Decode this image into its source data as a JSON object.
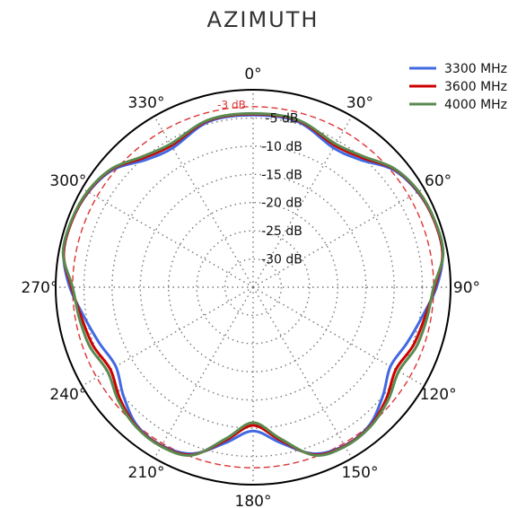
{
  "chart_data": {
    "type": "polar-line",
    "title": "AZIMUTH",
    "angle_labels": [
      {
        "angle": 0,
        "text": "0°"
      },
      {
        "angle": 30,
        "text": "30°"
      },
      {
        "angle": 60,
        "text": "60°"
      },
      {
        "angle": 90,
        "text": "90°"
      },
      {
        "angle": 120,
        "text": "120°"
      },
      {
        "angle": 150,
        "text": "150°"
      },
      {
        "angle": 180,
        "text": "180°"
      },
      {
        "angle": 210,
        "text": "210°"
      },
      {
        "angle": 240,
        "text": "240°"
      },
      {
        "angle": 270,
        "text": "270°"
      },
      {
        "angle": 300,
        "text": "300°"
      },
      {
        "angle": 330,
        "text": "330°"
      }
    ],
    "radial_axis": {
      "min_db": -35,
      "max_db": 0
    },
    "rings": [
      {
        "db": -5,
        "label": "-5 dB"
      },
      {
        "db": -10,
        "label": "-10 dB"
      },
      {
        "db": -15,
        "label": "-15 dB"
      },
      {
        "db": -20,
        "label": "-20 dB"
      },
      {
        "db": -25,
        "label": "-25 dB"
      },
      {
        "db": -30,
        "label": "-30 dB"
      }
    ],
    "reference_ring": {
      "db": -3,
      "label": "-3 dB",
      "color": "#dd3333"
    },
    "grid": true,
    "legend_position": "top-right",
    "series": [
      {
        "name": "3300 MHz",
        "color": "#4169e1",
        "points": [
          [
            0,
            -4.5
          ],
          [
            15,
            -4.6
          ],
          [
            30,
            -6.5
          ],
          [
            40,
            -5.5
          ],
          [
            50,
            -2.6
          ],
          [
            60,
            -1.3
          ],
          [
            70,
            -0.8
          ],
          [
            80,
            -0.9
          ],
          [
            90,
            -2.5
          ],
          [
            100,
            -4.6
          ],
          [
            110,
            -6.0
          ],
          [
            120,
            -6.9
          ],
          [
            130,
            -5.0
          ],
          [
            140,
            -3.0
          ],
          [
            150,
            -2.6
          ],
          [
            160,
            -3.6
          ],
          [
            170,
            -7.0
          ],
          [
            180,
            -9.5
          ],
          [
            190,
            -7.0
          ],
          [
            200,
            -3.6
          ],
          [
            210,
            -2.6
          ],
          [
            220,
            -3.0
          ],
          [
            230,
            -5.0
          ],
          [
            240,
            -6.9
          ],
          [
            250,
            -6.0
          ],
          [
            260,
            -4.6
          ],
          [
            270,
            -2.5
          ],
          [
            280,
            -0.9
          ],
          [
            290,
            -0.8
          ],
          [
            300,
            -1.3
          ],
          [
            310,
            -2.6
          ],
          [
            320,
            -5.5
          ],
          [
            330,
            -6.5
          ],
          [
            345,
            -4.6
          ]
        ]
      },
      {
        "name": "3600 MHz",
        "color": "#cc0000",
        "points": [
          [
            0,
            -4.3
          ],
          [
            15,
            -4.4
          ],
          [
            30,
            -6.0
          ],
          [
            40,
            -5.0
          ],
          [
            50,
            -2.4
          ],
          [
            60,
            -1.2
          ],
          [
            70,
            -0.8
          ],
          [
            80,
            -0.9
          ],
          [
            90,
            -2.8
          ],
          [
            100,
            -4.1
          ],
          [
            110,
            -4.8
          ],
          [
            120,
            -5.8
          ],
          [
            130,
            -4.2
          ],
          [
            140,
            -2.8
          ],
          [
            150,
            -2.5
          ],
          [
            160,
            -3.4
          ],
          [
            170,
            -7.5
          ],
          [
            180,
            -10.5
          ],
          [
            190,
            -7.5
          ],
          [
            200,
            -3.4
          ],
          [
            210,
            -2.5
          ],
          [
            220,
            -2.8
          ],
          [
            230,
            -4.2
          ],
          [
            240,
            -5.8
          ],
          [
            250,
            -4.8
          ],
          [
            260,
            -4.1
          ],
          [
            270,
            -2.8
          ],
          [
            280,
            -0.9
          ],
          [
            290,
            -0.8
          ],
          [
            300,
            -1.2
          ],
          [
            310,
            -2.4
          ],
          [
            320,
            -5.0
          ],
          [
            330,
            -6.0
          ],
          [
            345,
            -4.4
          ]
        ]
      },
      {
        "name": "4000 MHz",
        "color": "#5a8a50",
        "points": [
          [
            0,
            -4.2
          ],
          [
            15,
            -4.3
          ],
          [
            30,
            -5.7
          ],
          [
            40,
            -4.7
          ],
          [
            50,
            -2.3
          ],
          [
            60,
            -1.1
          ],
          [
            70,
            -0.7
          ],
          [
            80,
            -0.8
          ],
          [
            90,
            -3.0
          ],
          [
            100,
            -3.7
          ],
          [
            110,
            -4.2
          ],
          [
            120,
            -5.2
          ],
          [
            130,
            -3.8
          ],
          [
            140,
            -2.7
          ],
          [
            150,
            -2.4
          ],
          [
            160,
            -3.3
          ],
          [
            170,
            -7.8
          ],
          [
            180,
            -11.0
          ],
          [
            190,
            -7.8
          ],
          [
            200,
            -3.3
          ],
          [
            210,
            -2.4
          ],
          [
            220,
            -2.7
          ],
          [
            230,
            -3.8
          ],
          [
            240,
            -5.2
          ],
          [
            250,
            -4.2
          ],
          [
            260,
            -3.7
          ],
          [
            270,
            -3.0
          ],
          [
            280,
            -0.8
          ],
          [
            290,
            -0.7
          ],
          [
            300,
            -1.1
          ],
          [
            310,
            -2.3
          ],
          [
            320,
            -4.7
          ],
          [
            330,
            -5.7
          ],
          [
            345,
            -4.3
          ]
        ]
      }
    ]
  }
}
